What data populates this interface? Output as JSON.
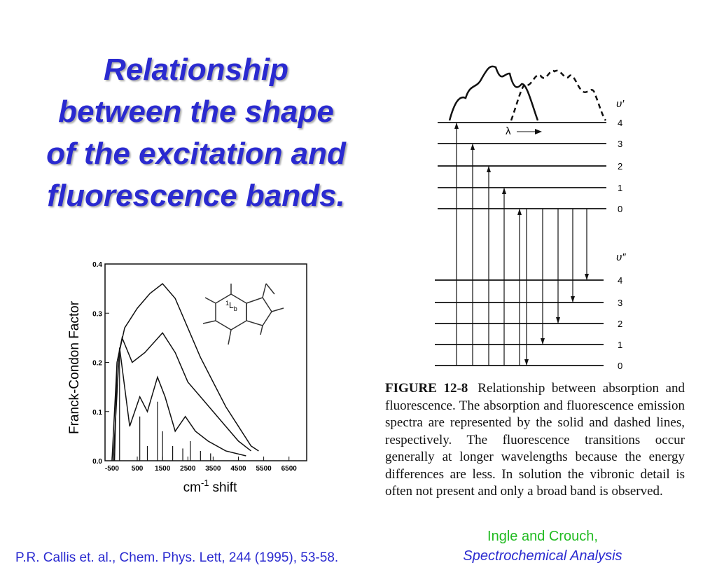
{
  "title": [
    "Relationship",
    "between the shape",
    "of the excitation and",
    "fluorescence bands."
  ],
  "chart_data": {
    "type": "line",
    "ylabel": "Franck-Condon Factor",
    "xlabel": {
      "main": "cm",
      "sup": "-1",
      "rest": "shift"
    },
    "inset_label": {
      "sup": "1",
      "main": "L",
      "sub": "b"
    },
    "xlim": [
      -775,
      7200
    ],
    "ylim": [
      0,
      0.4
    ],
    "xticks": [
      -500,
      500,
      1500,
      2500,
      3500,
      4500,
      5500,
      6500
    ],
    "yticks": [
      {
        "value": 0,
        "label": "0.0"
      },
      0.1,
      0.2,
      0.3,
      0.4
    ],
    "color": "#111111",
    "series": [
      {
        "x": [
          -400,
          -300,
          0,
          500,
          1000,
          1500,
          2000,
          2500,
          3000,
          3500,
          4000,
          4500,
          5000,
          5300
        ],
        "values": [
          0.0,
          0.2,
          0.27,
          0.31,
          0.34,
          0.36,
          0.33,
          0.27,
          0.21,
          0.16,
          0.11,
          0.07,
          0.03,
          0.02
        ]
      },
      {
        "x": [
          -500,
          -300,
          -100,
          300,
          800,
          1500,
          2000,
          2500,
          3000,
          3500,
          4000,
          4500,
          5000
        ],
        "values": [
          0.0,
          0.2,
          0.25,
          0.2,
          0.22,
          0.26,
          0.22,
          0.16,
          0.13,
          0.1,
          0.07,
          0.04,
          0.02
        ]
      },
      {
        "x": [
          -450,
          -200,
          200,
          600,
          900,
          1300,
          1600,
          2000,
          2400,
          2800,
          3300,
          4000,
          4800
        ],
        "values": [
          0.0,
          0.23,
          0.07,
          0.13,
          0.1,
          0.17,
          0.13,
          0.06,
          0.09,
          0.06,
          0.04,
          0.02,
          0.01
        ]
      }
    ],
    "sticks": {
      "x": [
        -200,
        600,
        900,
        1300,
        1500,
        1900,
        2300,
        2600,
        3000,
        3400
      ],
      "values": [
        0.22,
        0.09,
        0.03,
        0.12,
        0.06,
        0.03,
        0.025,
        0.04,
        0.02,
        0.015
      ]
    }
  },
  "diagram": {
    "upper_label": "υ′",
    "lower_label": "υ″",
    "lambda_label": "λ",
    "upper_levels": [
      "4",
      "3",
      "2",
      "1",
      "0"
    ],
    "lower_levels": [
      "4",
      "3",
      "2",
      "1",
      "0"
    ]
  },
  "caption": {
    "figure": "FIGURE 12-8",
    "text": "Relationship between absorption and fluorescence. The absorption and fluorescence emission spectra are represented by the solid and dashed lines, respectively. The fluorescence transitions occur generally at longer wavelengths because the energy differences are less. In solution the vibronic detail is often not present and only a broad band is observed."
  },
  "source_right": [
    "Ingle and Crouch,",
    "Spectrochemical Analysis"
  ],
  "source_left": "P.R. Callis et. al., Chem. Phys. Lett, 244 (1995), 53-58."
}
